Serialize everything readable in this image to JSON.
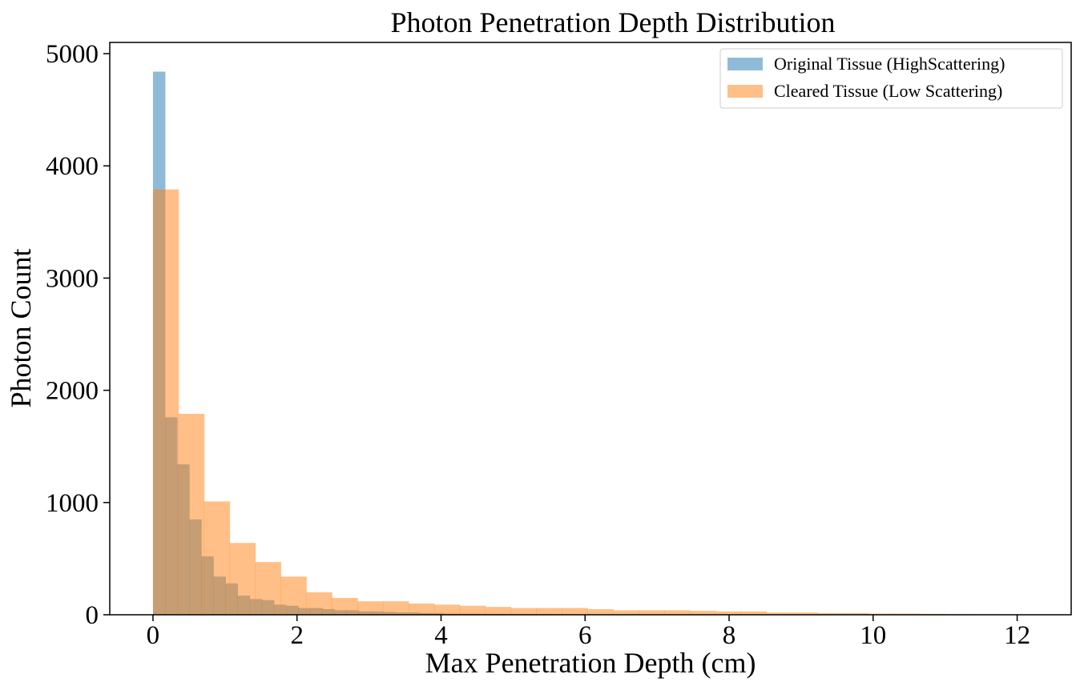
{
  "chart_data": {
    "type": "histogram",
    "title": "Photon Penetration Depth Distribution",
    "xlabel": "Max Penetration Depth (cm)",
    "ylabel": "Photon Count",
    "xlim": [
      -0.6,
      12.75
    ],
    "ylim": [
      0,
      5100
    ],
    "xticks": [
      0,
      2,
      4,
      6,
      8,
      10,
      12
    ],
    "yticks": [
      0,
      1000,
      2000,
      3000,
      4000,
      5000
    ],
    "legend_position": "top-right",
    "series": [
      {
        "name": "Original Tissue (HighScattering)",
        "color": "#1f77b4",
        "opacity": 0.5,
        "bin_start": 0.0,
        "bin_width": 0.168,
        "values": [
          4840,
          1760,
          1340,
          850,
          520,
          340,
          280,
          170,
          140,
          130,
          90,
          80,
          60,
          60,
          50,
          40,
          40,
          30,
          30,
          25,
          20,
          20,
          15,
          15,
          10,
          10,
          10,
          8,
          8,
          6,
          6,
          5,
          5,
          4,
          4,
          3,
          3,
          3,
          2,
          2,
          2,
          2,
          1,
          1,
          1,
          1,
          1,
          1,
          1,
          1
        ]
      },
      {
        "name": "Cleared Tissue (Low Scattering)",
        "color": "#ff7f0e",
        "opacity": 0.5,
        "bin_start": 0.0,
        "bin_width": 0.355,
        "values": [
          3790,
          1790,
          1010,
          640,
          470,
          340,
          200,
          150,
          120,
          120,
          100,
          90,
          80,
          70,
          60,
          60,
          60,
          50,
          40,
          40,
          40,
          35,
          30,
          30,
          20,
          20,
          15,
          15,
          10,
          10,
          8,
          6,
          5,
          4,
          3
        ]
      }
    ]
  }
}
